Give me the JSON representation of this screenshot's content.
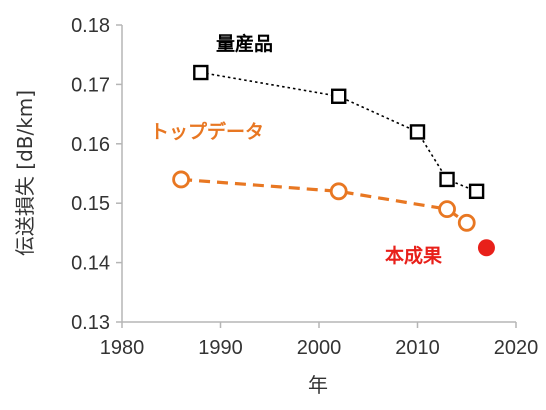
{
  "chart_data": {
    "type": "line",
    "xlabel": "年",
    "ylabel": "伝送損失 [dB/km]",
    "xlim": [
      1980,
      2020
    ],
    "ylim": [
      0.13,
      0.18
    ],
    "xticks": [
      1980,
      1990,
      2000,
      2010,
      2020
    ],
    "yticks": [
      0.13,
      0.14,
      0.15,
      0.16,
      0.17,
      0.18
    ],
    "xtick_labels": [
      "1980",
      "1990",
      "2000",
      "2010",
      "2020"
    ],
    "ytick_labels": [
      "0.13",
      "0.14",
      "0.15",
      "0.16",
      "0.17",
      "0.18"
    ],
    "grid": false,
    "series": [
      {
        "name": "量産品",
        "color": "#000000",
        "marker": "open-square",
        "line": "dotted",
        "x": [
          1988,
          2002,
          2010,
          2013,
          2016
        ],
        "y": [
          0.172,
          0.168,
          0.162,
          0.154,
          0.152
        ]
      },
      {
        "name": "トップデータ",
        "color": "#E87722",
        "marker": "open-circle",
        "line": "dashed",
        "x": [
          1986,
          2002,
          2013,
          2015
        ],
        "y": [
          0.154,
          0.152,
          0.149,
          0.1467
        ]
      },
      {
        "name": "本成果",
        "color": "#E8201A",
        "marker": "filled-circle",
        "line": "none",
        "x": [
          2017
        ],
        "y": [
          0.1425
        ]
      }
    ]
  }
}
